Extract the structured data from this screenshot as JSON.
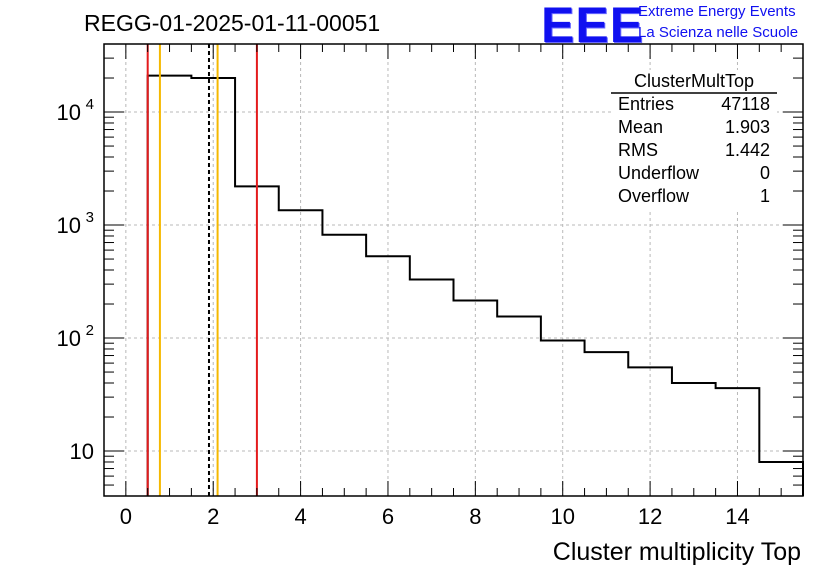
{
  "header": {
    "run_title": "REGG-01-2025-01-11-00051",
    "logo_text": "EEE",
    "logo_line1": "Extreme Energy Events",
    "logo_line2": "La Scienza nelle Scuole"
  },
  "stats_box": {
    "title": "ClusterMultTop",
    "rows": [
      {
        "label": "Entries",
        "value": "47118"
      },
      {
        "label": "Mean",
        "value": "1.903"
      },
      {
        "label": "RMS",
        "value": "1.442"
      },
      {
        "label": "Underflow",
        "value": "0"
      },
      {
        "label": "Overflow",
        "value": "1"
      }
    ]
  },
  "chart_data": {
    "type": "histogram",
    "title": "REGG-01-2025-01-11-00051",
    "xlabel": "Cluster multiplicity Top",
    "ylabel": "",
    "x_scale": "linear",
    "y_scale": "log",
    "xlim": [
      -0.5,
      15.5
    ],
    "ylim": [
      4,
      40000
    ],
    "grid": true,
    "bin_edges": [
      0.5,
      1.5,
      2.5,
      3.5,
      4.5,
      5.5,
      6.5,
      7.5,
      8.5,
      9.5,
      10.5,
      11.5,
      12.5,
      13.5,
      14.5,
      15.5
    ],
    "values": [
      21000,
      20000,
      2200,
      1350,
      820,
      530,
      330,
      215,
      155,
      95,
      75,
      55,
      40,
      36,
      8
    ],
    "x_ticks": [
      0,
      2,
      4,
      6,
      8,
      10,
      12,
      14
    ],
    "x_tick_labels": [
      "0",
      "2",
      "4",
      "6",
      "8",
      "10",
      "12",
      "14"
    ],
    "y_ticks": [
      {
        "value": 10,
        "base": "10",
        "exp": ""
      },
      {
        "value": 100,
        "base": "10",
        "exp": "2"
      },
      {
        "value": 1000,
        "base": "10",
        "exp": "3"
      },
      {
        "value": 10000,
        "base": "10",
        "exp": "4"
      }
    ],
    "vertical_lines": [
      {
        "x": 0.5,
        "color": "#e41a1c",
        "style": "solid"
      },
      {
        "x": 0.78,
        "color": "#f5b800",
        "style": "solid"
      },
      {
        "x": 1.903,
        "color": "#000000",
        "style": "dashed"
      },
      {
        "x": 2.1,
        "color": "#f5b800",
        "style": "solid"
      },
      {
        "x": 3.0,
        "color": "#e41a1c",
        "style": "solid"
      }
    ]
  }
}
